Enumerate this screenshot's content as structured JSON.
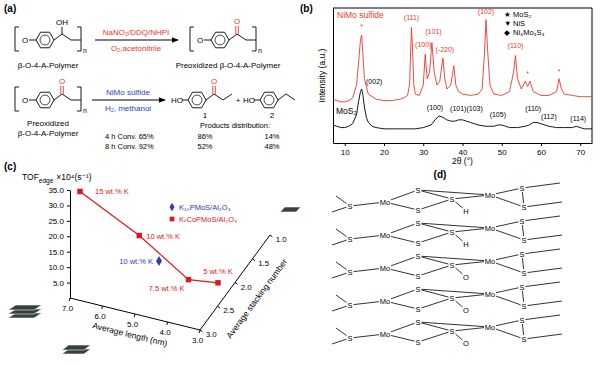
{
  "panel_a": {
    "label": "(a)",
    "atoms": {
      "ether": "O",
      "carbonyl": "O",
      "hydroxyl": "OH",
      "phenol": "HO",
      "repeat": "n",
      "plus": "+"
    },
    "step1": {
      "reactant": "β-O-4-A-Polymer",
      "reagents": "NaNO₂/DDQ/NHPI",
      "conditions": "O₂,acetonitrile",
      "product": "Preoxidized β-O-4-A-Polymer"
    },
    "step2": {
      "reactant": [
        "Preoxidized",
        "β-O-4-A-Polymer"
      ],
      "catalyst": "NiMo sulfide",
      "conditions": "H₂, methanol",
      "products": [
        "1",
        "2"
      ],
      "table_header": "Products distribution:",
      "rows": [
        [
          "4 h Conv. 65%",
          "86%",
          "14%"
        ],
        [
          "8 h Conv. 92%",
          "52%",
          "48%"
        ]
      ]
    }
  },
  "chart_data": [
    {
      "type": "line",
      "panel": "(b)",
      "xlabel": "2θ (°)",
      "ylabel": "Intensity (a.u.)",
      "xlim": [
        7,
        73
      ],
      "xticks": [
        10,
        20,
        30,
        40,
        50,
        60,
        70
      ],
      "ylim": [
        0,
        105
      ],
      "tick_labels": "x",
      "series": [
        {
          "name": "NiMo sulfide",
          "color": "#e8392f",
          "x": [
            7,
            8,
            9,
            10,
            11,
            12,
            13,
            13.5,
            14,
            14.3,
            14.6,
            15,
            16,
            18,
            20,
            22,
            24,
            25,
            26,
            26.5,
            27,
            27.3,
            27.6,
            28,
            29,
            30,
            30.5,
            31,
            31.6,
            32.2,
            32.8,
            33.5,
            34.2,
            35,
            35.5,
            36,
            37,
            37.8,
            38.3,
            39,
            40,
            42,
            44,
            45,
            45.6,
            46,
            46.4,
            47,
            48,
            50,
            52,
            53,
            53.5,
            54,
            55,
            56,
            56.6,
            57.2,
            58,
            60,
            62,
            64,
            64.6,
            65.2,
            66,
            68,
            70,
            72,
            73
          ],
          "values": [
            34,
            33,
            32,
            32,
            33,
            35,
            45,
            62,
            80,
            84,
            70,
            50,
            38,
            34,
            33,
            33,
            34,
            35,
            37,
            45,
            90,
            70,
            45,
            38,
            37,
            45,
            69,
            50,
            55,
            78,
            55,
            45,
            48,
            66,
            50,
            42,
            45,
            60,
            45,
            40,
            38,
            37,
            38,
            42,
            70,
            96,
            72,
            45,
            38,
            37,
            40,
            55,
            68,
            50,
            42,
            48,
            44,
            48,
            40,
            37,
            37,
            40,
            50,
            42,
            38,
            37,
            36,
            36,
            36
          ]
        },
        {
          "name": "MoS₂",
          "color": "#000000",
          "x": [
            7,
            8,
            9,
            10,
            11,
            12,
            13,
            13.5,
            14,
            14.3,
            14.6,
            15,
            15.5,
            16,
            17,
            18,
            20,
            22,
            24,
            26,
            28,
            30,
            31,
            32,
            33,
            34,
            35,
            36,
            37,
            38,
            39,
            40,
            41,
            42,
            43,
            44,
            46,
            48,
            49,
            50,
            51,
            52,
            54,
            56,
            57,
            58,
            59,
            60,
            61,
            62,
            64,
            66,
            68,
            69,
            70,
            71,
            72,
            73
          ],
          "values": [
            14,
            13,
            12,
            12,
            13,
            15,
            22,
            32,
            40,
            42,
            38,
            28,
            20,
            16,
            13,
            12,
            11,
            11,
            11,
            11,
            11,
            12,
            13,
            14,
            18,
            21,
            20,
            18,
            17,
            17,
            18,
            18,
            17,
            16,
            15,
            14,
            13,
            13,
            14,
            14,
            13,
            12,
            12,
            13,
            14,
            16,
            16,
            15,
            14,
            13,
            12,
            12,
            12,
            13,
            12,
            11,
            11,
            11
          ]
        }
      ],
      "phase_legend": [
        {
          "symbol": "★",
          "label": "MoS₂"
        },
        {
          "symbol": "▼",
          "label": "NiS"
        },
        {
          "symbol": "◆",
          "label": "Ni₃Mo₃S₄"
        }
      ],
      "annotations": [
        {
          "text": "*",
          "x": 14.3,
          "y": 89,
          "color": "#e8392f"
        },
        {
          "text": "(111)",
          "x": 27,
          "y": 96,
          "color": "#e8392f"
        },
        {
          "text": "(100)",
          "x": 30,
          "y": 75,
          "color": "#e8392f"
        },
        {
          "text": "(101)",
          "x": 32.6,
          "y": 85,
          "color": "#e8392f"
        },
        {
          "text": "(-220)",
          "x": 35.5,
          "y": 71,
          "color": "#e8392f"
        },
        {
          "text": "(102)",
          "x": 46,
          "y": 100,
          "color": "#e8392f"
        },
        {
          "text": "(110)",
          "x": 53.5,
          "y": 74,
          "color": "#e8392f"
        },
        {
          "text": "*",
          "x": 56.6,
          "y": 52,
          "color": "#e8392f"
        },
        {
          "text": "*",
          "x": 64.6,
          "y": 54,
          "color": "#e8392f"
        },
        {
          "text": "(002)",
          "x": 17.5,
          "y": 46,
          "color": "#000000"
        },
        {
          "text": "(100)",
          "x": 33,
          "y": 26,
          "color": "#000000"
        },
        {
          "text": "(101)(103)",
          "x": 41,
          "y": 25,
          "color": "#000000"
        },
        {
          "text": "(105)",
          "x": 49,
          "y": 20,
          "color": "#000000"
        },
        {
          "text": "(110)",
          "x": 58,
          "y": 25,
          "color": "#000000"
        },
        {
          "text": "(112)",
          "x": 62,
          "y": 19,
          "color": "#000000"
        },
        {
          "text": "(114)",
          "x": 69.5,
          "y": 17,
          "color": "#000000"
        }
      ]
    },
    {
      "type": "scatter3d",
      "panel": "(c)",
      "ylabel": {
        "main": "TOF",
        "sub": "edge",
        "rest": "×10⁴(s⁻¹)"
      },
      "xlabel": "Average length (nm)",
      "zlabel": "Average stacking number",
      "xlim": [
        3,
        7
      ],
      "xticks": [
        {
          "value": 7,
          "label": "7.0"
        },
        {
          "value": 6,
          "label": "6.0"
        },
        {
          "value": 5,
          "label": "5.0"
        },
        {
          "value": 4,
          "label": "4.0"
        },
        {
          "value": 3,
          "label": "3.0"
        }
      ],
      "ylim": [
        0,
        35
      ],
      "yticks": [
        {
          "value": 5,
          "label": "5.0"
        },
        {
          "value": 10,
          "label": "10.0"
        },
        {
          "value": 15,
          "label": "15.0"
        },
        {
          "value": 20,
          "label": "20.0"
        },
        {
          "value": 25,
          "label": "25.0"
        },
        {
          "value": 30,
          "label": "30.0"
        },
        {
          "value": 35,
          "label": "35.0"
        }
      ],
      "zlim": [
        1,
        3
      ],
      "zticks": [
        {
          "value": 1,
          "label": "1.0"
        },
        {
          "value": 1.5,
          "label": "1.5"
        },
        {
          "value": 2,
          "label": "2.0"
        },
        {
          "value": 2.5,
          "label": "2.5"
        },
        {
          "value": 3,
          "label": "3.0"
        }
      ],
      "legend": "top-right",
      "series": [
        {
          "name": "K₁₀PMoS/Al₂O₃",
          "color": "#2a3cb5",
          "marker": "diamond",
          "x": [
            4.8
          ],
          "z": [
            2.5
          ],
          "values": [
            10
          ],
          "point_labels": [
            "10 wt.% K"
          ]
        },
        {
          "name": "KₓCoPMoS/Al₂O₃",
          "color": "#d7191c",
          "marker": "square",
          "line_style": "solid",
          "x": [
            6.8,
            5.3,
            4.0,
            3.2
          ],
          "z": [
            2.9,
            2.6,
            2.4,
            2.3
          ],
          "values": [
            33.5,
            18.5,
            4.5,
            4.0
          ],
          "point_labels": [
            "15 wt.% K",
            "10 wt.% K",
            "7.5 wt.% K",
            "5 wt.% K"
          ]
        }
      ]
    }
  ],
  "panel_d": {
    "label": "(d)",
    "metal": "Mo",
    "sulfur": "S",
    "adsorbates": [
      "H",
      "H",
      "O",
      "O",
      "O"
    ]
  }
}
